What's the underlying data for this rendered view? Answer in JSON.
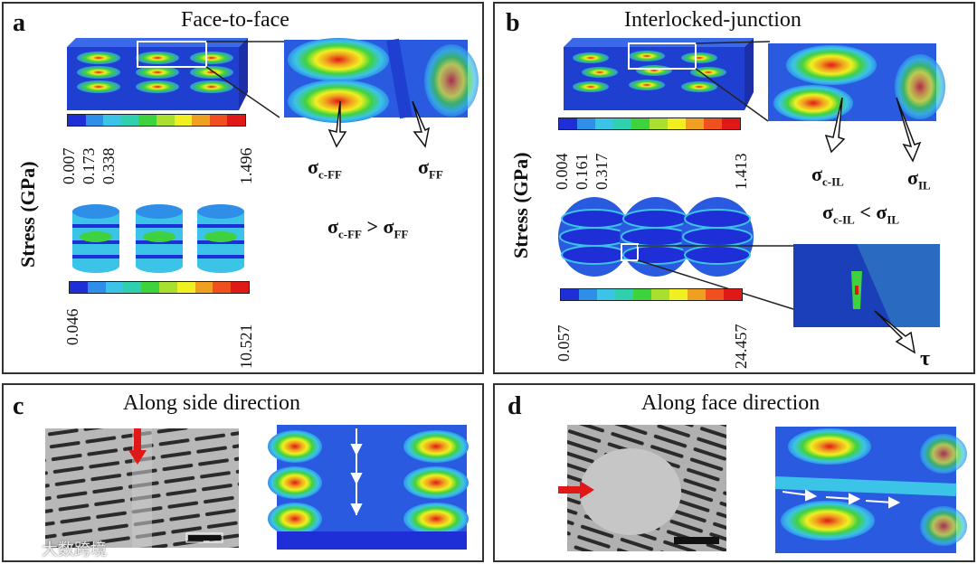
{
  "panels": {
    "a": {
      "label": "a",
      "title": "Face-to-face",
      "ylabel": "Stress (GPa)",
      "cbar1_ticks": [
        "0.007",
        "0.173",
        "0.338",
        "1.496"
      ],
      "cbar2_ticks": [
        "0.046",
        "10.521"
      ],
      "sym_left": "σ",
      "sym_left_sub": "c-FF",
      "sym_right": "σ",
      "sym_right_sub": "FF",
      "relation": "σc-FF > σFF",
      "rel_left": "σ",
      "rel_left_sub": "c-FF",
      "rel_op": ">",
      "rel_right": "σ",
      "rel_right_sub": "FF"
    },
    "b": {
      "label": "b",
      "title": "Interlocked-junction",
      "ylabel": "Stress (GPa)",
      "cbar1_ticks": [
        "0.004",
        "0.161",
        "0.317",
        "1.413"
      ],
      "cbar2_ticks": [
        "0.057",
        "24.457"
      ],
      "sym_left": "σ",
      "sym_left_sub": "c-IL",
      "sym_right": "σ",
      "sym_right_sub": "IL",
      "rel_left": "σ",
      "rel_left_sub": "c-IL",
      "rel_op": "<",
      "rel_right": "σ",
      "rel_right_sub": "IL",
      "tau": "τ"
    },
    "c": {
      "label": "c",
      "title": "Along side direction"
    },
    "d": {
      "label": "d",
      "title": "Along face direction"
    }
  },
  "colormap": [
    "#1f2fd8",
    "#2f8fe8",
    "#3cc3e8",
    "#2fd0b0",
    "#3fd23f",
    "#a8e030",
    "#f0f020",
    "#f0a020",
    "#f05020",
    "#e01818"
  ],
  "watermark": "大数跨境"
}
